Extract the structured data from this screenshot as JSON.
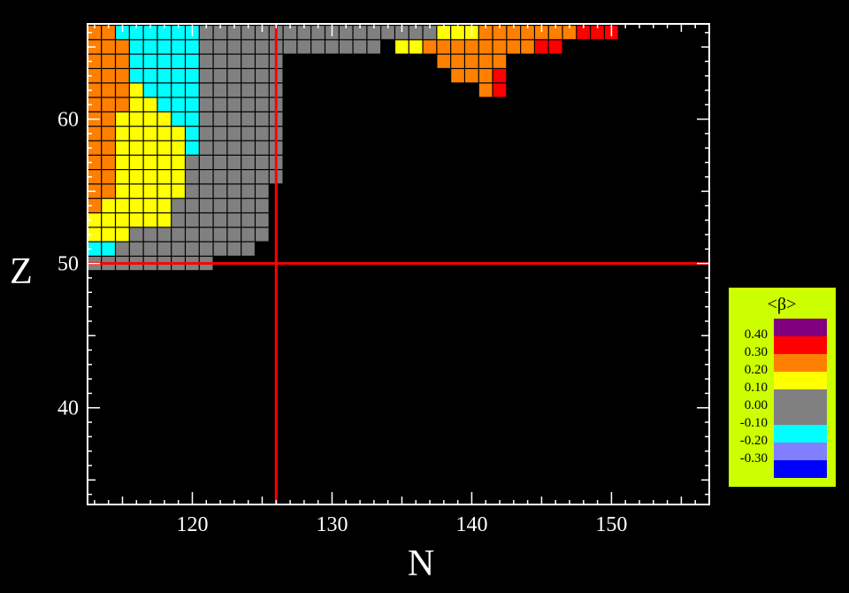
{
  "chart_data": {
    "type": "heatmap",
    "title": "",
    "xlabel": "N",
    "ylabel": "Z",
    "xlim": [
      112.5,
      157
    ],
    "ylim": [
      33.3,
      66.6
    ],
    "x_ticks": [
      120,
      130,
      140,
      150
    ],
    "y_ticks": [
      40,
      50,
      60
    ],
    "x_tick_labels": [
      "120",
      "130",
      "140",
      "150"
    ],
    "y_tick_labels": [
      "40",
      "50",
      "60"
    ],
    "magic_lines": {
      "N": 126,
      "Z": 50
    },
    "grid": false,
    "legend_position": "right",
    "colorbar": {
      "title": "<β>",
      "labels": [
        "0.40",
        "0.30",
        "0.20",
        "0.10",
        "0.00",
        "-0.10",
        "-0.20",
        "-0.30"
      ],
      "bands": [
        {
          "class": "gt40",
          "color": "#800080"
        },
        {
          "class": "30_40",
          "color": "#ff0000"
        },
        {
          "class": "20_30",
          "color": "#ff8000"
        },
        {
          "class": "10_20",
          "color": "#ffff00"
        },
        {
          "class": "m10_10",
          "color": "#808080"
        },
        {
          "class": "m20_m10",
          "color": "#00ffff"
        },
        {
          "class": "m30_m20",
          "color": "#8080ff"
        },
        {
          "class": "lt_m30",
          "color": "#0000ff"
        }
      ],
      "background": "#ccff00"
    },
    "colors": {
      "O": "#ff8000",
      "C": "#00ffff",
      "Y": "#ffff00",
      "G": "#808080",
      "R": "#ff0000"
    },
    "rows": [
      {
        "z": 66,
        "n_start": 113,
        "cells": "OOCCCCCCGGGGGGGGGGGGGGGGGYYYOOOOOOORRR"
      },
      {
        "z": 65,
        "n_start": 113,
        "cells": "OOOCCCCCGGGGGGGGGGGGG"
      },
      {
        "z": 65,
        "n_start": 135,
        "cells": "YYOOOOOOOORR"
      },
      {
        "z": 64,
        "n_start": 113,
        "cells": "OOOCCCCCGGGGGG"
      },
      {
        "z": 64,
        "n_start": 138,
        "cells": "OOOOO"
      },
      {
        "z": 63,
        "n_start": 113,
        "cells": "OOOCCCCCGGGGGG"
      },
      {
        "z": 63,
        "n_start": 139,
        "cells": "OOOR"
      },
      {
        "z": 62,
        "n_start": 113,
        "cells": "OOOYCCCCGGGGGG"
      },
      {
        "z": 62,
        "n_start": 141,
        "cells": "OR"
      },
      {
        "z": 61,
        "n_start": 113,
        "cells": "OOOYYCCCGGGGGG"
      },
      {
        "z": 60,
        "n_start": 113,
        "cells": "OOYYYYCCGGGGGG"
      },
      {
        "z": 59,
        "n_start": 113,
        "cells": "OOYYYYYCGGGGGG"
      },
      {
        "z": 58,
        "n_start": 113,
        "cells": "OOYYYYYCGGGGGG"
      },
      {
        "z": 57,
        "n_start": 113,
        "cells": "OOYYYYYGGGGGGG"
      },
      {
        "z": 56,
        "n_start": 113,
        "cells": "OOYYYYYGGGGGGG"
      },
      {
        "z": 55,
        "n_start": 113,
        "cells": "OOYYYYYGGGGGG"
      },
      {
        "z": 54,
        "n_start": 113,
        "cells": "OYYYYYGGGGGGG"
      },
      {
        "z": 53,
        "n_start": 113,
        "cells": "YYYYYYGGGGGGG"
      },
      {
        "z": 52,
        "n_start": 113,
        "cells": "YYYGGGGGGGGGG"
      },
      {
        "z": 51,
        "n_start": 113,
        "cells": "CCGGGGGGGGGG"
      },
      {
        "z": 50,
        "n_start": 113,
        "cells": "GGGGGGGGG"
      }
    ]
  }
}
